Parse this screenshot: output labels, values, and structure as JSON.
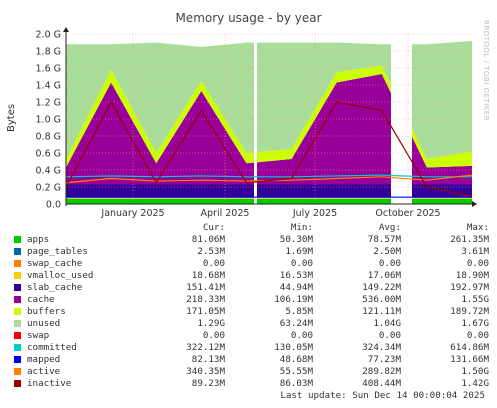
{
  "title": "Memory usage - by year",
  "watermark": "RRDTOOL / TOBI OETIKER",
  "chart_data": {
    "type": "area",
    "title": "Memory usage - by year",
    "ylabel": "Bytes",
    "ylim": [
      0,
      2.0
    ],
    "yunit": "G",
    "yticks": [
      "0.0",
      "0.2 G",
      "0.4 G",
      "0.6 G",
      "0.8 G",
      "1.0 G",
      "1.2 G",
      "1.4 G",
      "1.6 G",
      "1.8 G",
      "2.0 G"
    ],
    "xticks": [
      "January 2025",
      "April 2025",
      "July 2025",
      "October 2025"
    ],
    "grid": true,
    "gaps": [
      "2025-10-12/2025-10-25"
    ],
    "series": [
      {
        "name": "apps",
        "color": "#00cc00",
        "values": [
          0.06,
          0.06,
          0.06,
          0.06,
          0.06,
          0.06,
          0.06,
          0.06,
          0.06,
          0.06
        ]
      },
      {
        "name": "page_tables",
        "color": "#0066b3",
        "values": [
          0.002,
          0.002,
          0.002,
          0.002,
          0.002,
          0.002,
          0.002,
          0.002,
          0.002,
          0.002
        ]
      },
      {
        "name": "swap_cache",
        "color": "#ff8000",
        "values": [
          0,
          0,
          0,
          0,
          0,
          0,
          0,
          0,
          0,
          0
        ]
      },
      {
        "name": "vmalloc_used",
        "color": "#ffcc00",
        "values": [
          0.017,
          0.017,
          0.017,
          0.017,
          0.017,
          0.017,
          0.017,
          0.017,
          0.017,
          0.017
        ]
      },
      {
        "name": "slab_cache",
        "color": "#330099",
        "values": [
          0.15,
          0.15,
          0.15,
          0.15,
          0.15,
          0.15,
          0.15,
          0.15,
          0.15,
          0.15
        ]
      },
      {
        "name": "cache",
        "color": "#990099",
        "values": [
          0.2,
          1.2,
          0.25,
          1.1,
          0.25,
          0.3,
          1.2,
          1.3,
          0.2,
          0.22
        ]
      },
      {
        "name": "buffers",
        "color": "#ccff00",
        "values": [
          0.1,
          0.15,
          0.12,
          0.12,
          0.12,
          0.12,
          0.12,
          0.1,
          0.1,
          0.17
        ]
      },
      {
        "name": "unused",
        "color": "#aadd99",
        "values": [
          1.35,
          0.3,
          1.3,
          0.4,
          1.3,
          1.25,
          0.35,
          0.25,
          1.35,
          1.3
        ]
      }
    ]
  },
  "legend": {
    "headers": {
      "cur": "Cur:",
      "min": "Min:",
      "avg": "Avg:",
      "max": "Max:"
    },
    "rows": [
      {
        "name": "apps",
        "color": "#00cc00",
        "cur": "81.06M",
        "min": "50.30M",
        "avg": "78.57M",
        "max": "261.35M"
      },
      {
        "name": "page_tables",
        "color": "#0066b3",
        "cur": "2.53M",
        "min": "1.69M",
        "avg": "2.50M",
        "max": "3.61M"
      },
      {
        "name": "swap_cache",
        "color": "#ff8000",
        "cur": "0.00",
        "min": "0.00",
        "avg": "0.00",
        "max": "0.00"
      },
      {
        "name": "vmalloc_used",
        "color": "#ffcc00",
        "cur": "18.68M",
        "min": "16.53M",
        "avg": "17.06M",
        "max": "18.90M"
      },
      {
        "name": "slab_cache",
        "color": "#330099",
        "cur": "151.41M",
        "min": "44.94M",
        "avg": "149.22M",
        "max": "192.97M"
      },
      {
        "name": "cache",
        "color": "#990099",
        "cur": "218.33M",
        "min": "106.19M",
        "avg": "536.00M",
        "max": "1.55G"
      },
      {
        "name": "buffers",
        "color": "#ccff00",
        "cur": "171.05M",
        "min": "5.85M",
        "avg": "121.11M",
        "max": "189.72M"
      },
      {
        "name": "unused",
        "color": "#aadd99",
        "cur": "1.29G",
        "min": "63.24M",
        "avg": "1.04G",
        "max": "1.67G"
      },
      {
        "name": "swap",
        "color": "#ff0000",
        "cur": "0.00",
        "min": "0.00",
        "avg": "0.00",
        "max": "0.00"
      },
      {
        "name": "committed",
        "color": "#00cccc",
        "cur": "322.12M",
        "min": "130.05M",
        "avg": "324.34M",
        "max": "614.86M"
      },
      {
        "name": "mapped",
        "color": "#0000ff",
        "cur": "82.13M",
        "min": "48.68M",
        "avg": "77.23M",
        "max": "131.66M"
      },
      {
        "name": "active",
        "color": "#ff8000",
        "cur": "340.35M",
        "min": "55.55M",
        "avg": "289.82M",
        "max": "1.50G"
      },
      {
        "name": "inactive",
        "color": "#990000",
        "cur": "89.23M",
        "min": "86.03M",
        "avg": "408.44M",
        "max": "1.42G"
      }
    ]
  },
  "last_update": "Last update: Sun Dec 14 00:00:04 2025"
}
